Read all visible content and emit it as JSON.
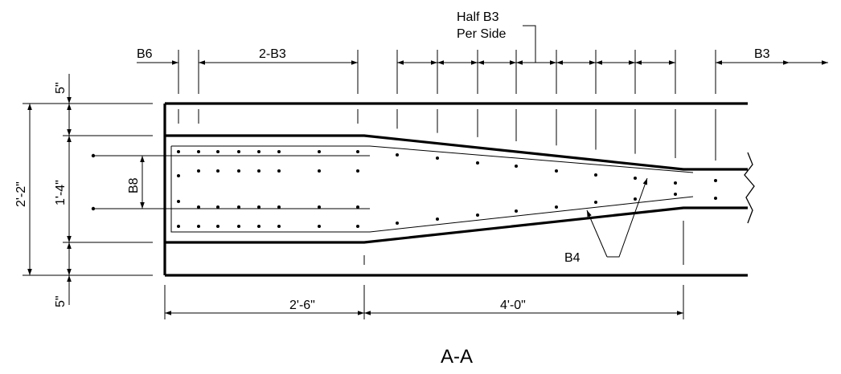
{
  "labels": {
    "half_b3_line1": "Half B3",
    "half_b3_line2": "Per Side",
    "b6": "B6",
    "two_b3": "2-B3",
    "b3_right": "B3",
    "b8": "B8",
    "b4": "B4",
    "dim_5_top": "5\"",
    "dim_5_bottom": "5\"",
    "dim_2_2": "2'-2\"",
    "dim_1_4": "1'-4\"",
    "dim_2_6": "2'-6\"",
    "dim_4_0": "4'-0\"",
    "section_title": "A-A"
  },
  "colors": {
    "line": "#000000",
    "background": "#ffffff"
  }
}
